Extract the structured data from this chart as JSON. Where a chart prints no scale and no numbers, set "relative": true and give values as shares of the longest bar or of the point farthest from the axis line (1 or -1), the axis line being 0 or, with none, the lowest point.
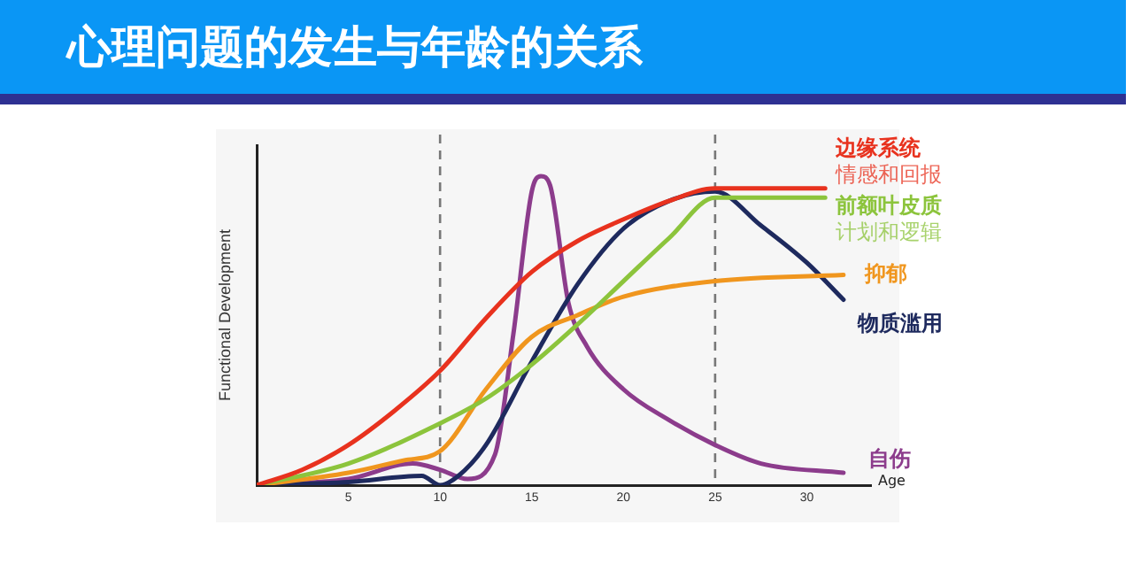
{
  "chart_data": {
    "type": "line",
    "title": "心理问题的发生与年龄的关系",
    "xlabel": "Age",
    "ylabel": "Functional Development",
    "relative": true,
    "xlim": [
      0,
      33.5
    ],
    "xticks": [
      5,
      10,
      15,
      20,
      25,
      30
    ],
    "grid": false,
    "legend": false,
    "marker": "none",
    "line_style": "solid",
    "annotations": [
      {
        "text": "情感和回报",
        "x": 31,
        "y": 0.96
      },
      {
        "text": "计划和逻辑",
        "x": 31,
        "y": 0.93
      }
    ],
    "ref_lines": [
      {
        "axis": "x",
        "value": 10,
        "line_style": "dashed",
        "color": "#777777"
      },
      {
        "axis": "x",
        "value": 25,
        "line_style": "dashed",
        "color": "#777777"
      }
    ],
    "series": [
      {
        "name": "边缘系统",
        "color": "#e8321e",
        "x": [
          0,
          2.5,
          5,
          7.5,
          10,
          12.5,
          15,
          17.5,
          20,
          22.5,
          25,
          31
        ],
        "values": [
          0,
          0.05,
          0.13,
          0.24,
          0.37,
          0.54,
          0.69,
          0.79,
          0.86,
          0.92,
          0.96,
          0.96
        ]
      },
      {
        "name": "前额叶皮质",
        "color": "#8cc43c",
        "x": [
          0,
          5,
          10,
          12.5,
          15,
          17.5,
          20,
          22.5,
          25,
          31
        ],
        "values": [
          0,
          0.07,
          0.2,
          0.28,
          0.39,
          0.52,
          0.66,
          0.8,
          0.93,
          0.93
        ]
      },
      {
        "name": "抑郁",
        "color": "#f0961e",
        "x": [
          0,
          5,
          8,
          10,
          12.5,
          15,
          17.5,
          20,
          25,
          32
        ],
        "values": [
          0,
          0.04,
          0.08,
          0.11,
          0.31,
          0.48,
          0.55,
          0.61,
          0.66,
          0.68
        ]
      },
      {
        "name": "物质滥用",
        "color": "#1e2a5e",
        "x": [
          0,
          5,
          9,
          10,
          11,
          12.5,
          15,
          17.5,
          20,
          22.5,
          25,
          27.5,
          30,
          32
        ],
        "values": [
          0,
          0.01,
          0.03,
          0,
          0.03,
          0.13,
          0.4,
          0.65,
          0.83,
          0.92,
          0.95,
          0.84,
          0.72,
          0.6
        ]
      },
      {
        "name": "自伤",
        "color": "#8c3c8c",
        "x": [
          0,
          5,
          8.5,
          10,
          11.5,
          13,
          14,
          15,
          15.5,
          16,
          17,
          18,
          20,
          22.5,
          25,
          27.5,
          32
        ],
        "values": [
          0,
          0.02,
          0.07,
          0.05,
          0.02,
          0.1,
          0.49,
          0.95,
          1,
          0.97,
          0.59,
          0.45,
          0.31,
          0.21,
          0.13,
          0.07,
          0.04
        ]
      }
    ]
  }
}
